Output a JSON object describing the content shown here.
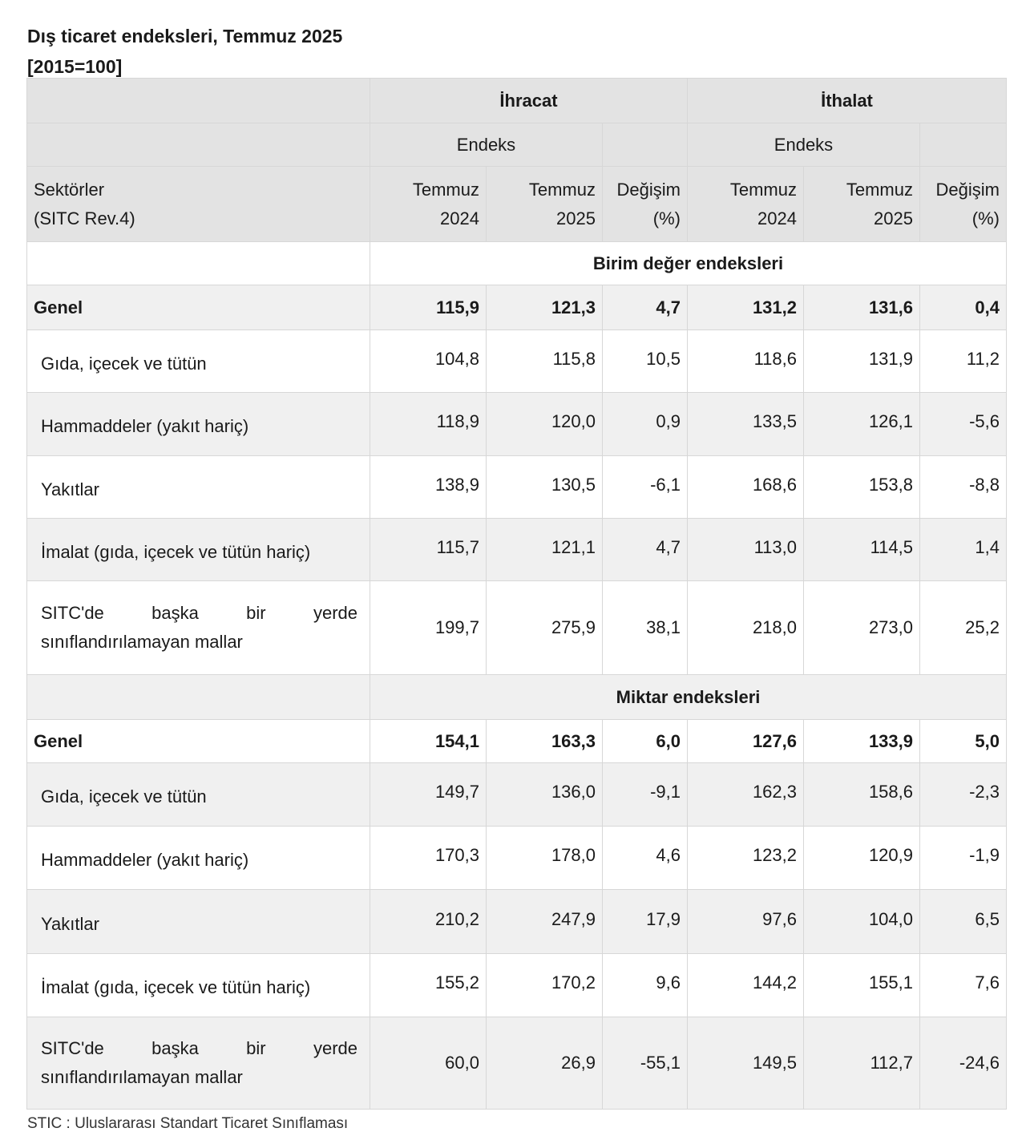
{
  "title": "Dış ticaret endeksleri, Temmuz 2025",
  "subtitle": "[2015=100]",
  "header": {
    "exports": "İhracat",
    "imports": "İthalat",
    "index": "Endeks",
    "sector_line1": "Sektörler",
    "sector_line2": "(SITC Rev.4)",
    "col_2024_line1": "Temmuz",
    "col_2024_line2": "2024",
    "col_2025_line1": "Temmuz",
    "col_2025_line2": "2025",
    "change_line1": "Değişim",
    "change_line2": "(%)"
  },
  "sections": [
    {
      "heading": "Birim değer endeksleri",
      "total": {
        "label": "Genel",
        "values": [
          "115,9",
          "121,3",
          "4,7",
          "131,2",
          "131,6",
          "0,4"
        ]
      },
      "rows": [
        {
          "label": "Gıda, içecek ve tütün",
          "values": [
            "104,8",
            "115,8",
            "10,5",
            "118,6",
            "131,9",
            "11,2"
          ]
        },
        {
          "label": "Hammaddeler (yakıt hariç)",
          "values": [
            "118,9",
            "120,0",
            "0,9",
            "133,5",
            "126,1",
            "-5,6"
          ]
        },
        {
          "label": "Yakıtlar",
          "values": [
            "138,9",
            "130,5",
            "-6,1",
            "168,6",
            "153,8",
            "-8,8"
          ]
        },
        {
          "label": "İmalat (gıda, içecek ve tütün hariç)",
          "values": [
            "115,7",
            "121,1",
            "4,7",
            "113,0",
            "114,5",
            "1,4"
          ]
        },
        {
          "label_words": [
            "SITC'de",
            "başka",
            "bir",
            "yerde"
          ],
          "label_line2": "sınıflandırılamayan mallar",
          "values": [
            "199,7",
            "275,9",
            "38,1",
            "218,0",
            "273,0",
            "25,2"
          ]
        }
      ]
    },
    {
      "heading": "Miktar endeksleri",
      "total": {
        "label": "Genel",
        "values": [
          "154,1",
          "163,3",
          "6,0",
          "127,6",
          "133,9",
          "5,0"
        ]
      },
      "rows": [
        {
          "label": "Gıda, içecek ve tütün",
          "values": [
            "149,7",
            "136,0",
            "-9,1",
            "162,3",
            "158,6",
            "-2,3"
          ]
        },
        {
          "label": "Hammaddeler (yakıt hariç)",
          "values": [
            "170,3",
            "178,0",
            "4,6",
            "123,2",
            "120,9",
            "-1,9"
          ]
        },
        {
          "label": "Yakıtlar",
          "values": [
            "210,2",
            "247,9",
            "17,9",
            "97,6",
            "104,0",
            "6,5"
          ]
        },
        {
          "label": "İmalat (gıda, içecek ve tütün hariç)",
          "values": [
            "155,2",
            "170,2",
            "9,6",
            "144,2",
            "155,1",
            "7,6"
          ]
        },
        {
          "label_words": [
            "SITC'de",
            "başka",
            "bir",
            "yerde"
          ],
          "label_line2": "sınıflandırılamayan mallar",
          "values": [
            "60,0",
            "26,9",
            "-55,1",
            "149,5",
            "112,7",
            "-24,6"
          ]
        }
      ]
    }
  ],
  "footer": "STIC : Uluslararası Standart Ticaret Sınıflaması"
}
